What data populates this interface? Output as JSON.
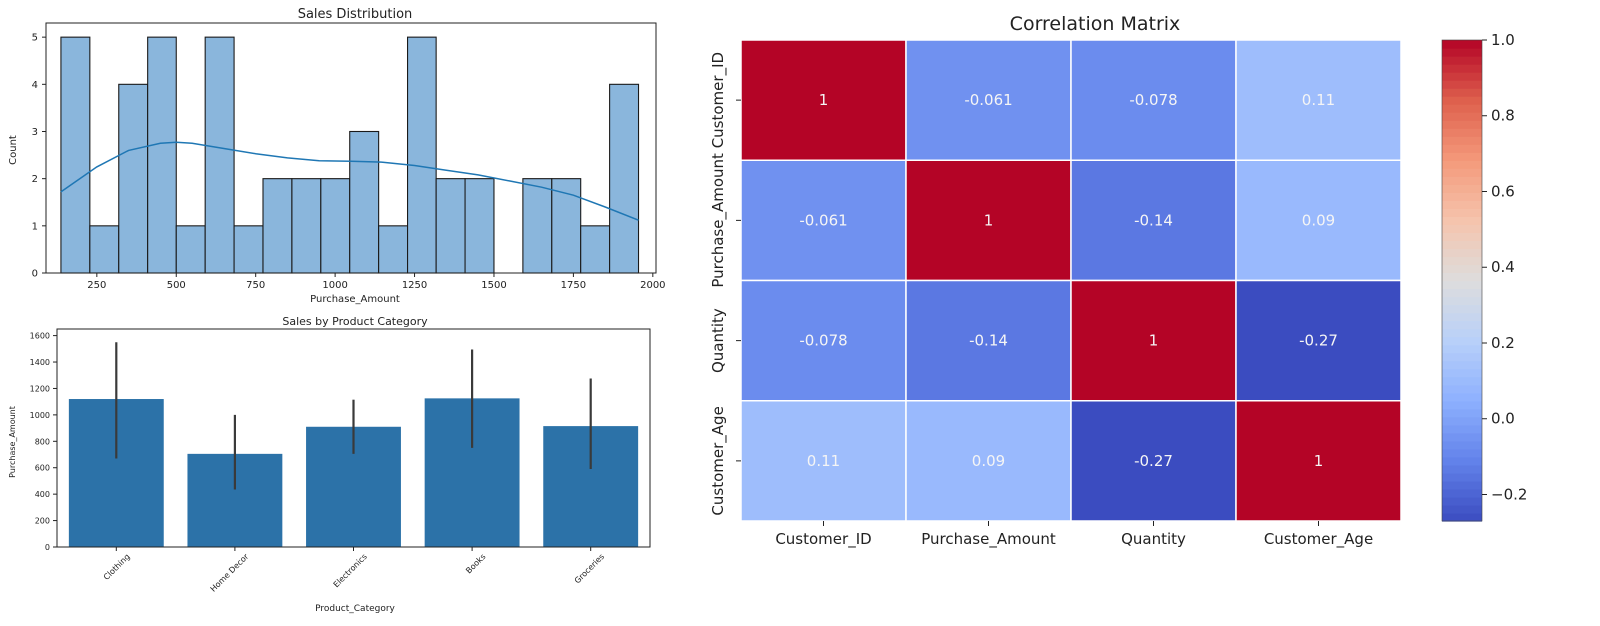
{
  "chart_data": [
    {
      "type": "bar",
      "title": "Sales Distribution",
      "xlabel": "Purchase_Amount",
      "ylabel": "Count",
      "xlim": [
        90,
        2010
      ],
      "ylim": [
        0,
        5.3
      ],
      "xticks": [
        250,
        500,
        750,
        1000,
        1250,
        1500,
        1750,
        2000
      ],
      "yticks": [
        0,
        1,
        2,
        3,
        4,
        5
      ],
      "bins": [
        {
          "x0": 137,
          "x1": 228,
          "count": 5
        },
        {
          "x0": 228,
          "x1": 319,
          "count": 1
        },
        {
          "x0": 319,
          "x1": 410,
          "count": 4
        },
        {
          "x0": 410,
          "x1": 500,
          "count": 5
        },
        {
          "x0": 500,
          "x1": 591,
          "count": 1
        },
        {
          "x0": 591,
          "x1": 682,
          "count": 5
        },
        {
          "x0": 682,
          "x1": 773,
          "count": 1
        },
        {
          "x0": 773,
          "x1": 864,
          "count": 2
        },
        {
          "x0": 864,
          "x1": 955,
          "count": 2
        },
        {
          "x0": 955,
          "x1": 1046,
          "count": 2
        },
        {
          "x0": 1046,
          "x1": 1137,
          "count": 3
        },
        {
          "x0": 1137,
          "x1": 1228,
          "count": 1
        },
        {
          "x0": 1228,
          "x1": 1318,
          "count": 5
        },
        {
          "x0": 1318,
          "x1": 1409,
          "count": 2
        },
        {
          "x0": 1409,
          "x1": 1500,
          "count": 2
        },
        {
          "x0": 1500,
          "x1": 1591,
          "count": 0
        },
        {
          "x0": 1591,
          "x1": 1682,
          "count": 2
        },
        {
          "x0": 1682,
          "x1": 1773,
          "count": 2
        },
        {
          "x0": 1773,
          "x1": 1864,
          "count": 1
        },
        {
          "x0": 1864,
          "x1": 1955,
          "count": 4
        }
      ],
      "kde": {
        "x": [
          137,
          250,
          350,
          450,
          500,
          550,
          650,
          750,
          850,
          950,
          1050,
          1150,
          1250,
          1350,
          1450,
          1550,
          1650,
          1750,
          1850,
          1955
        ],
        "y": [
          1.72,
          2.25,
          2.6,
          2.75,
          2.77,
          2.75,
          2.64,
          2.53,
          2.44,
          2.38,
          2.37,
          2.35,
          2.28,
          2.18,
          2.08,
          1.95,
          1.82,
          1.65,
          1.4,
          1.12
        ]
      },
      "bar_color": "#8ab6dc",
      "line_color": "#1f77b4"
    },
    {
      "type": "bar",
      "title": "Sales by Product Category",
      "xlabel": "Product_Category",
      "ylabel": "Purchase_Amount",
      "ylim": [
        0,
        1650
      ],
      "yticks": [
        0,
        200,
        400,
        600,
        800,
        1000,
        1200,
        1400,
        1600
      ],
      "categories": [
        "Clothing",
        "Home Decor",
        "Electronics",
        "Books",
        "Groceries"
      ],
      "values": [
        1120,
        705,
        910,
        1125,
        915
      ],
      "errors": [
        [
          670,
          1550
        ],
        [
          435,
          1000
        ],
        [
          705,
          1115
        ],
        [
          750,
          1495
        ],
        [
          590,
          1275
        ]
      ],
      "bar_color": "#2c72a8"
    },
    {
      "type": "heatmap",
      "title": "Correlation Matrix",
      "labels": [
        "Customer_ID",
        "Purchase_Amount",
        "Quantity",
        "Customer_Age"
      ],
      "matrix": [
        [
          1,
          -0.061,
          -0.078,
          0.11
        ],
        [
          -0.061,
          1,
          -0.14,
          0.09
        ],
        [
          -0.078,
          -0.14,
          1,
          -0.27
        ],
        [
          0.11,
          0.09,
          -0.27,
          1
        ]
      ],
      "cell_text": [
        [
          "1",
          "-0.061",
          "-0.078",
          "0.11"
        ],
        [
          "-0.061",
          "1",
          "-0.14",
          "0.09"
        ],
        [
          "-0.078",
          "-0.14",
          "1",
          "-0.27"
        ],
        [
          "0.11",
          "0.09",
          "-0.27",
          "1"
        ]
      ],
      "colormap": "coolwarm",
      "colorbar_range": [
        -0.27,
        1.0
      ],
      "colorbar_ticks": [
        {
          "value": 1.0,
          "label": "1.0"
        },
        {
          "value": 0.8,
          "label": "0.8"
        },
        {
          "value": 0.6,
          "label": "0.6"
        },
        {
          "value": 0.4,
          "label": "0.4"
        },
        {
          "value": 0.2,
          "label": "0.2"
        },
        {
          "value": 0.0,
          "label": "0.0"
        },
        {
          "value": -0.2,
          "label": "−0.2"
        }
      ]
    }
  ]
}
